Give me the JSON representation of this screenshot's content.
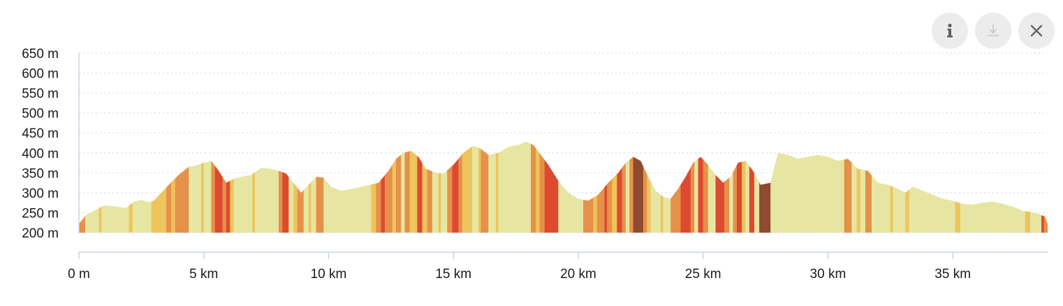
{
  "toolbar": {
    "info_icon": "info-icon",
    "download_icon": "download-icon",
    "close_icon": "close-icon"
  },
  "colors": {
    "flat": "#e6e6a2",
    "mild": "#eec45c",
    "moderate": "#e5914a",
    "steep": "#dd4a30",
    "very_steep": "#8f4a30",
    "grid": "#d6dbe6",
    "axis": "#cbd3e6"
  },
  "chart_data": {
    "type": "area",
    "title": "",
    "xlabel": "",
    "ylabel": "",
    "xlim": [
      0,
      38.8
    ],
    "ylim": [
      200,
      650
    ],
    "grid": true,
    "y_ticks": [
      200,
      250,
      300,
      350,
      400,
      450,
      500,
      550,
      600,
      650
    ],
    "y_tick_labels": [
      "200 m",
      "250 m",
      "300 m",
      "350 m",
      "400 m",
      "450 m",
      "500 m",
      "550 m",
      "600 m",
      "650 m"
    ],
    "x_ticks": [
      0,
      5,
      10,
      15,
      20,
      25,
      30,
      35
    ],
    "x_tick_labels": [
      "0 m",
      "5 km",
      "10 km",
      "15 km",
      "20 km",
      "25 km",
      "30 km",
      "35 km"
    ],
    "x": [
      0,
      0.3,
      0.6,
      1.0,
      1.4,
      1.9,
      2.2,
      2.5,
      2.8,
      3.0,
      3.3,
      3.6,
      4.0,
      4.4,
      4.7,
      5.0,
      5.3,
      5.6,
      5.9,
      6.2,
      6.5,
      6.9,
      7.3,
      7.7,
      8.0,
      8.3,
      8.6,
      8.9,
      9.2,
      9.5,
      9.8,
      10.1,
      10.5,
      11.0,
      11.5,
      12.0,
      12.4,
      12.7,
      13.0,
      13.3,
      13.6,
      13.9,
      14.3,
      14.6,
      15.0,
      15.4,
      15.8,
      16.1,
      16.4,
      16.8,
      17.2,
      17.6,
      17.9,
      18.2,
      18.5,
      18.8,
      19.2,
      19.6,
      20.0,
      20.4,
      20.8,
      21.2,
      21.6,
      21.9,
      22.2,
      22.5,
      22.8,
      23.1,
      23.4,
      23.7,
      24.0,
      24.3,
      24.6,
      24.9,
      25.2,
      25.5,
      25.8,
      26.1,
      26.4,
      26.7,
      27.0,
      27.3,
      27.7,
      28.0,
      28.4,
      28.8,
      29.2,
      29.6,
      30.0,
      30.4,
      30.8,
      31.2,
      31.6,
      32.0,
      32.4,
      32.8,
      33.1,
      33.4,
      33.8,
      34.2,
      34.6,
      35.0,
      35.4,
      35.8,
      36.2,
      36.6,
      37.0,
      37.4,
      37.8,
      38.1,
      38.4,
      38.7,
      38.8
    ],
    "y": [
      222,
      245,
      255,
      268,
      266,
      262,
      278,
      282,
      276,
      280,
      300,
      320,
      345,
      365,
      368,
      375,
      380,
      355,
      325,
      335,
      340,
      345,
      362,
      360,
      355,
      348,
      325,
      300,
      320,
      340,
      338,
      315,
      305,
      310,
      318,
      325,
      355,
      385,
      400,
      405,
      390,
      360,
      350,
      348,
      370,
      400,
      418,
      410,
      395,
      400,
      415,
      420,
      428,
      420,
      395,
      370,
      330,
      300,
      285,
      280,
      295,
      325,
      350,
      375,
      390,
      380,
      340,
      305,
      290,
      285,
      310,
      340,
      375,
      390,
      370,
      345,
      325,
      340,
      375,
      380,
      355,
      320,
      325,
      400,
      395,
      385,
      390,
      395,
      390,
      380,
      385,
      360,
      355,
      325,
      320,
      310,
      300,
      315,
      305,
      295,
      285,
      280,
      272,
      270,
      275,
      278,
      272,
      265,
      255,
      252,
      248,
      240,
      222
    ],
    "gradient_segments": [
      {
        "from": 0.0,
        "to": 0.25,
        "class": "moderate"
      },
      {
        "from": 0.25,
        "to": 0.8,
        "class": "flat"
      },
      {
        "from": 0.8,
        "to": 0.9,
        "class": "mild"
      },
      {
        "from": 0.9,
        "to": 2.0,
        "class": "flat"
      },
      {
        "from": 2.0,
        "to": 2.15,
        "class": "mild"
      },
      {
        "from": 2.15,
        "to": 2.9,
        "class": "flat"
      },
      {
        "from": 2.9,
        "to": 3.5,
        "class": "mild"
      },
      {
        "from": 3.5,
        "to": 3.7,
        "class": "moderate"
      },
      {
        "from": 3.7,
        "to": 3.85,
        "class": "mild"
      },
      {
        "from": 3.85,
        "to": 4.4,
        "class": "moderate"
      },
      {
        "from": 4.4,
        "to": 4.9,
        "class": "flat"
      },
      {
        "from": 4.9,
        "to": 5.0,
        "class": "mild"
      },
      {
        "from": 5.0,
        "to": 5.3,
        "class": "flat"
      },
      {
        "from": 5.3,
        "to": 5.45,
        "class": "moderate"
      },
      {
        "from": 5.45,
        "to": 5.75,
        "class": "steep"
      },
      {
        "from": 5.75,
        "to": 5.9,
        "class": "moderate"
      },
      {
        "from": 5.9,
        "to": 6.05,
        "class": "steep"
      },
      {
        "from": 6.05,
        "to": 6.2,
        "class": "mild"
      },
      {
        "from": 6.2,
        "to": 6.95,
        "class": "flat"
      },
      {
        "from": 6.95,
        "to": 7.05,
        "class": "mild"
      },
      {
        "from": 7.05,
        "to": 8.0,
        "class": "flat"
      },
      {
        "from": 8.0,
        "to": 8.15,
        "class": "moderate"
      },
      {
        "from": 8.15,
        "to": 8.4,
        "class": "steep"
      },
      {
        "from": 8.4,
        "to": 8.6,
        "class": "flat"
      },
      {
        "from": 8.6,
        "to": 8.75,
        "class": "mild"
      },
      {
        "from": 8.75,
        "to": 9.0,
        "class": "moderate"
      },
      {
        "from": 9.0,
        "to": 9.2,
        "class": "flat"
      },
      {
        "from": 9.2,
        "to": 9.3,
        "class": "mild"
      },
      {
        "from": 9.3,
        "to": 9.5,
        "class": "flat"
      },
      {
        "from": 9.5,
        "to": 9.8,
        "class": "moderate"
      },
      {
        "from": 9.8,
        "to": 11.7,
        "class": "flat"
      },
      {
        "from": 11.7,
        "to": 11.9,
        "class": "mild"
      },
      {
        "from": 11.9,
        "to": 12.1,
        "class": "moderate"
      },
      {
        "from": 12.1,
        "to": 12.25,
        "class": "steep"
      },
      {
        "from": 12.25,
        "to": 12.55,
        "class": "moderate"
      },
      {
        "from": 12.55,
        "to": 12.7,
        "class": "mild"
      },
      {
        "from": 12.7,
        "to": 12.9,
        "class": "moderate"
      },
      {
        "from": 12.9,
        "to": 13.05,
        "class": "flat"
      },
      {
        "from": 13.05,
        "to": 13.25,
        "class": "moderate"
      },
      {
        "from": 13.25,
        "to": 13.55,
        "class": "mild"
      },
      {
        "from": 13.55,
        "to": 13.75,
        "class": "steep"
      },
      {
        "from": 13.75,
        "to": 13.95,
        "class": "mild"
      },
      {
        "from": 13.95,
        "to": 14.15,
        "class": "moderate"
      },
      {
        "from": 14.15,
        "to": 14.4,
        "class": "flat"
      },
      {
        "from": 14.4,
        "to": 14.5,
        "class": "mild"
      },
      {
        "from": 14.5,
        "to": 14.75,
        "class": "flat"
      },
      {
        "from": 14.75,
        "to": 14.95,
        "class": "moderate"
      },
      {
        "from": 14.95,
        "to": 15.2,
        "class": "steep"
      },
      {
        "from": 15.2,
        "to": 15.35,
        "class": "moderate"
      },
      {
        "from": 15.35,
        "to": 15.75,
        "class": "mild"
      },
      {
        "from": 15.75,
        "to": 16.0,
        "class": "flat"
      },
      {
        "from": 16.0,
        "to": 16.1,
        "class": "mild"
      },
      {
        "from": 16.1,
        "to": 16.4,
        "class": "moderate"
      },
      {
        "from": 16.4,
        "to": 16.7,
        "class": "flat"
      },
      {
        "from": 16.7,
        "to": 16.8,
        "class": "mild"
      },
      {
        "from": 16.8,
        "to": 18.1,
        "class": "flat"
      },
      {
        "from": 18.1,
        "to": 18.3,
        "class": "moderate"
      },
      {
        "from": 18.3,
        "to": 18.45,
        "class": "mild"
      },
      {
        "from": 18.45,
        "to": 18.65,
        "class": "moderate"
      },
      {
        "from": 18.65,
        "to": 19.2,
        "class": "steep"
      },
      {
        "from": 19.2,
        "to": 20.2,
        "class": "flat"
      },
      {
        "from": 20.2,
        "to": 20.6,
        "class": "moderate"
      },
      {
        "from": 20.6,
        "to": 20.75,
        "class": "mild"
      },
      {
        "from": 20.75,
        "to": 21.05,
        "class": "moderate"
      },
      {
        "from": 21.05,
        "to": 21.15,
        "class": "steep"
      },
      {
        "from": 21.15,
        "to": 21.35,
        "class": "moderate"
      },
      {
        "from": 21.35,
        "to": 21.55,
        "class": "mild"
      },
      {
        "from": 21.55,
        "to": 21.75,
        "class": "steep"
      },
      {
        "from": 21.75,
        "to": 21.9,
        "class": "moderate"
      },
      {
        "from": 21.9,
        "to": 22.05,
        "class": "flat"
      },
      {
        "from": 22.05,
        "to": 22.2,
        "class": "moderate"
      },
      {
        "from": 22.2,
        "to": 22.6,
        "class": "very_steep"
      },
      {
        "from": 22.6,
        "to": 22.75,
        "class": "moderate"
      },
      {
        "from": 22.75,
        "to": 22.9,
        "class": "mild"
      },
      {
        "from": 22.9,
        "to": 23.3,
        "class": "flat"
      },
      {
        "from": 23.3,
        "to": 23.4,
        "class": "mild"
      },
      {
        "from": 23.4,
        "to": 23.7,
        "class": "flat"
      },
      {
        "from": 23.7,
        "to": 24.1,
        "class": "moderate"
      },
      {
        "from": 24.1,
        "to": 24.5,
        "class": "steep"
      },
      {
        "from": 24.5,
        "to": 24.65,
        "class": "moderate"
      },
      {
        "from": 24.65,
        "to": 24.8,
        "class": "flat"
      },
      {
        "from": 24.8,
        "to": 25.0,
        "class": "steep"
      },
      {
        "from": 25.0,
        "to": 25.2,
        "class": "moderate"
      },
      {
        "from": 25.2,
        "to": 25.5,
        "class": "flat"
      },
      {
        "from": 25.5,
        "to": 25.85,
        "class": "steep"
      },
      {
        "from": 25.85,
        "to": 26.05,
        "class": "moderate"
      },
      {
        "from": 26.05,
        "to": 26.2,
        "class": "flat"
      },
      {
        "from": 26.2,
        "to": 26.35,
        "class": "moderate"
      },
      {
        "from": 26.35,
        "to": 26.55,
        "class": "steep"
      },
      {
        "from": 26.55,
        "to": 26.7,
        "class": "mild"
      },
      {
        "from": 26.7,
        "to": 26.85,
        "class": "flat"
      },
      {
        "from": 26.85,
        "to": 27.05,
        "class": "steep"
      },
      {
        "from": 27.05,
        "to": 27.25,
        "class": "flat"
      },
      {
        "from": 27.25,
        "to": 27.7,
        "class": "very_steep"
      },
      {
        "from": 27.7,
        "to": 30.65,
        "class": "flat"
      },
      {
        "from": 30.65,
        "to": 30.95,
        "class": "moderate"
      },
      {
        "from": 30.95,
        "to": 31.15,
        "class": "flat"
      },
      {
        "from": 31.15,
        "to": 31.3,
        "class": "mild"
      },
      {
        "from": 31.3,
        "to": 31.5,
        "class": "flat"
      },
      {
        "from": 31.5,
        "to": 31.75,
        "class": "moderate"
      },
      {
        "from": 31.75,
        "to": 32.5,
        "class": "flat"
      },
      {
        "from": 32.5,
        "to": 32.6,
        "class": "mild"
      },
      {
        "from": 32.6,
        "to": 33.1,
        "class": "flat"
      },
      {
        "from": 33.1,
        "to": 33.25,
        "class": "mild"
      },
      {
        "from": 33.25,
        "to": 35.1,
        "class": "flat"
      },
      {
        "from": 35.1,
        "to": 35.3,
        "class": "mild"
      },
      {
        "from": 35.3,
        "to": 37.9,
        "class": "flat"
      },
      {
        "from": 37.9,
        "to": 38.1,
        "class": "mild"
      },
      {
        "from": 38.1,
        "to": 38.55,
        "class": "flat"
      },
      {
        "from": 38.55,
        "to": 38.65,
        "class": "steep"
      },
      {
        "from": 38.65,
        "to": 38.8,
        "class": "moderate"
      }
    ]
  }
}
